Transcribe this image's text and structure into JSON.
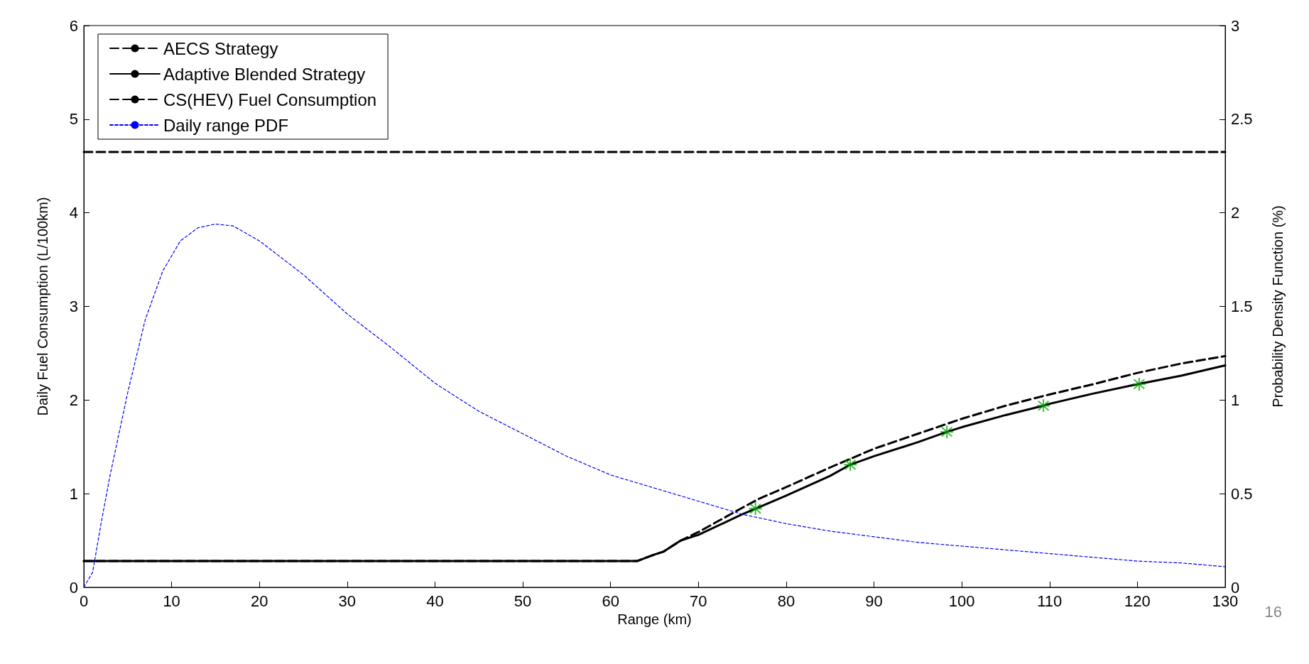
{
  "chart_data": {
    "type": "line",
    "xlabel": "Range (km)",
    "ylabel": "Daily Fuel Consumption (L/100km)",
    "y2label": "Probability Density Function (%)",
    "xlim": [
      0,
      130
    ],
    "xticks": [
      0,
      10,
      20,
      30,
      40,
      50,
      60,
      70,
      80,
      90,
      100,
      110,
      120,
      130
    ],
    "ylim": [
      0,
      6
    ],
    "yticks": [
      0,
      1,
      2,
      3,
      4,
      5,
      6
    ],
    "y2lim": [
      0,
      3
    ],
    "y2ticks": [
      0,
      0.5,
      1,
      1.5,
      2,
      2.5,
      3
    ],
    "grid": false,
    "legend": "top left",
    "annotations": [
      "16"
    ],
    "series": [
      {
        "name": "AECS Strategy",
        "color": "#000000",
        "line_style": "dashed",
        "x": [
          0,
          63,
          65,
          66,
          68,
          70,
          75,
          77,
          80,
          85,
          90,
          95,
          100,
          105,
          110,
          115,
          120,
          125,
          130
        ],
        "values": [
          0.28,
          0.28,
          0.35,
          0.38,
          0.5,
          0.59,
          0.85,
          0.95,
          1.07,
          1.28,
          1.48,
          1.64,
          1.8,
          1.94,
          2.06,
          2.17,
          2.29,
          2.39,
          2.47
        ]
      },
      {
        "name": "Adaptive Blended Strategy",
        "color": "#000000",
        "line_style": "solid",
        "x": [
          0,
          63,
          65,
          66,
          68,
          70,
          75,
          76.5,
          80,
          85,
          87.3,
          90,
          95,
          98.3,
          100,
          105,
          109.3,
          110,
          115,
          120,
          125,
          130
        ],
        "values": [
          0.28,
          0.28,
          0.35,
          0.38,
          0.5,
          0.56,
          0.78,
          0.84,
          0.98,
          1.19,
          1.31,
          1.4,
          1.55,
          1.66,
          1.71,
          1.84,
          1.94,
          1.96,
          2.07,
          2.17,
          2.26,
          2.37
        ]
      },
      {
        "name": "CS(HEV) Fuel Consumption",
        "color": "#000000",
        "line_style": "dashed",
        "x": [
          0,
          130
        ],
        "values": [
          4.65,
          4.65
        ]
      },
      {
        "name": "Daily range PDF",
        "color": "#0000ff",
        "line_style": "dotted",
        "axis": "y2",
        "x": [
          0,
          1,
          2,
          3,
          5,
          7,
          9,
          11,
          13,
          15,
          17,
          20,
          25,
          30,
          35,
          40,
          45,
          50,
          55,
          60,
          65,
          70,
          75,
          80,
          85,
          90,
          95,
          100,
          105,
          110,
          115,
          120,
          125,
          130
        ],
        "values": [
          0,
          0.08,
          0.35,
          0.6,
          1.04,
          1.43,
          1.69,
          1.85,
          1.92,
          1.94,
          1.93,
          1.85,
          1.67,
          1.46,
          1.28,
          1.09,
          0.94,
          0.82,
          0.7,
          0.6,
          0.53,
          0.46,
          0.39,
          0.34,
          0.3,
          0.27,
          0.24,
          0.22,
          0.2,
          0.18,
          0.16,
          0.14,
          0.13,
          0.11
        ]
      },
      {
        "type": "scatter",
        "color": "#00a000",
        "marker": "star",
        "x": [
          76.5,
          87.3,
          98.3,
          109.3,
          120.2
        ],
        "values": [
          0.84,
          1.31,
          1.66,
          1.94,
          2.17
        ]
      }
    ]
  }
}
